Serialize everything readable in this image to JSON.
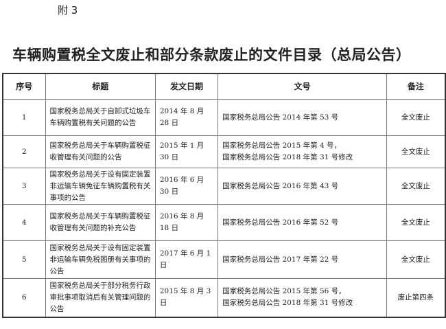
{
  "annex": "附 3",
  "title": "车辆购置税全文废止和部分条款废止的文件目录（总局公告）",
  "headers": [
    "序号",
    "标题",
    "发文日期",
    "文号",
    "备注"
  ],
  "rows": [
    {
      "no": "1",
      "title": "国家税务总局关于自卸式垃圾车车辆购置税有关问题的公告",
      "date": "2014 年 8 月 28 日",
      "doc": [
        "国家税务总局公告 2014 年第 53 号"
      ],
      "note": "全文废止"
    },
    {
      "no": "2",
      "title": "国家税务总局关于车辆购置税征收管理有关问题的公告",
      "date": "2015 年 1 月 30 日",
      "doc": [
        "国家税务总局公告 2015 年第 4 号，",
        "国家税务总局公告 2018 年第 31 号修改"
      ],
      "note": "全文废止"
    },
    {
      "no": "3",
      "title": "国家税务总局关于设有固定装置非运输车辆免征车辆购置税有关事项的公告",
      "date": "2016 年 6 月 30 日",
      "doc": [
        "国家税务总局公告 2016 年第 43 号"
      ],
      "note": "全文废止"
    },
    {
      "no": "4",
      "title": "国家税务总局关于车辆购置税征收管理有关问题的补充公告",
      "date": "2016 年 8 月 18 日",
      "doc": [
        "国家税务总局公告 2016 年第 52 号"
      ],
      "note": "全文废止"
    },
    {
      "no": "5",
      "title": "国家税务总局关于设有固定装置非运输车辆免税图册有关事项的公告",
      "date": "2017 年 6 月 1 日",
      "doc": [
        "国家税务总局公告 2017 年第 22 号"
      ],
      "note": "全文废止"
    },
    {
      "no": "6",
      "title": "国家税务总局关于部分税务行政审批事项取消后有关管理问题的公告",
      "date": "2015 年 8 月 3 日",
      "doc": [
        "国家税务总局公告 2015 年第 56 号，",
        "国家税务总局公告 2018 年第 31 号修改"
      ],
      "note": "废止第四条"
    }
  ]
}
